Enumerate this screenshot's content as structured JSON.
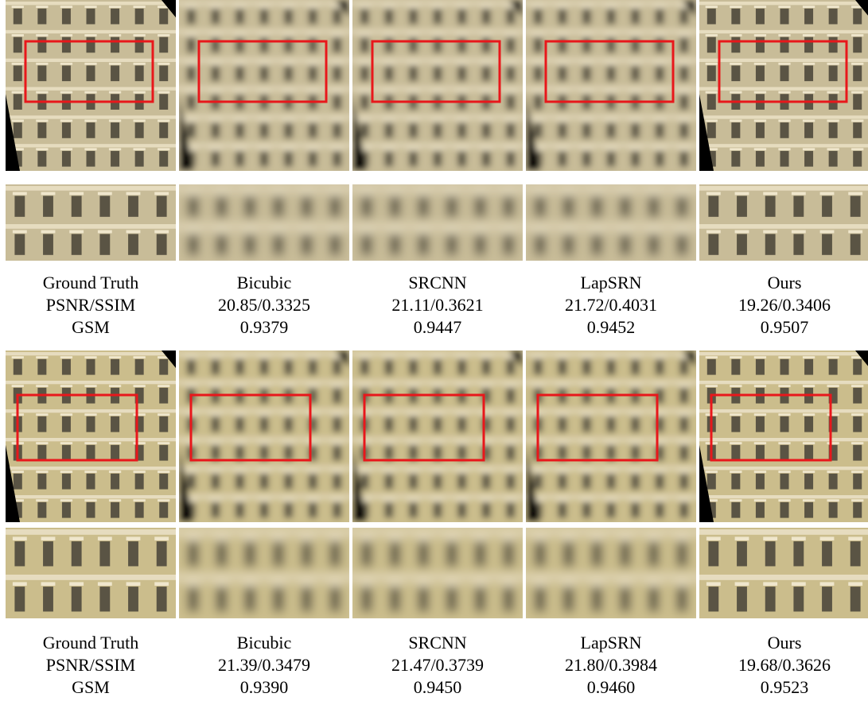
{
  "examples": [
    {
      "columns": [
        {
          "method": "Ground Truth",
          "psnr_ssim": "PSNR/SSIM",
          "gsm": "GSM"
        },
        {
          "method": "Bicubic",
          "psnr_ssim": "20.85/0.3325",
          "gsm": "0.9379"
        },
        {
          "method": "SRCNN",
          "psnr_ssim": "21.11/0.3621",
          "gsm": "0.9447"
        },
        {
          "method": "LapSRN",
          "psnr_ssim": "21.72/0.4031",
          "gsm": "0.9452"
        },
        {
          "method": "Ours",
          "psnr_ssim": "19.26/0.3406",
          "gsm": "0.9507"
        }
      ]
    },
    {
      "columns": [
        {
          "method": "Ground Truth",
          "psnr_ssim": "PSNR/SSIM",
          "gsm": "GSM"
        },
        {
          "method": "Bicubic",
          "psnr_ssim": "21.39/0.3479",
          "gsm": "0.9390"
        },
        {
          "method": "SRCNN",
          "psnr_ssim": "21.47/0.3739",
          "gsm": "0.9450"
        },
        {
          "method": "LapSRN",
          "psnr_ssim": "21.80/0.3984",
          "gsm": "0.9460"
        },
        {
          "method": "Ours",
          "psnr_ssim": "19.68/0.3626",
          "gsm": "0.9523"
        }
      ]
    }
  ]
}
